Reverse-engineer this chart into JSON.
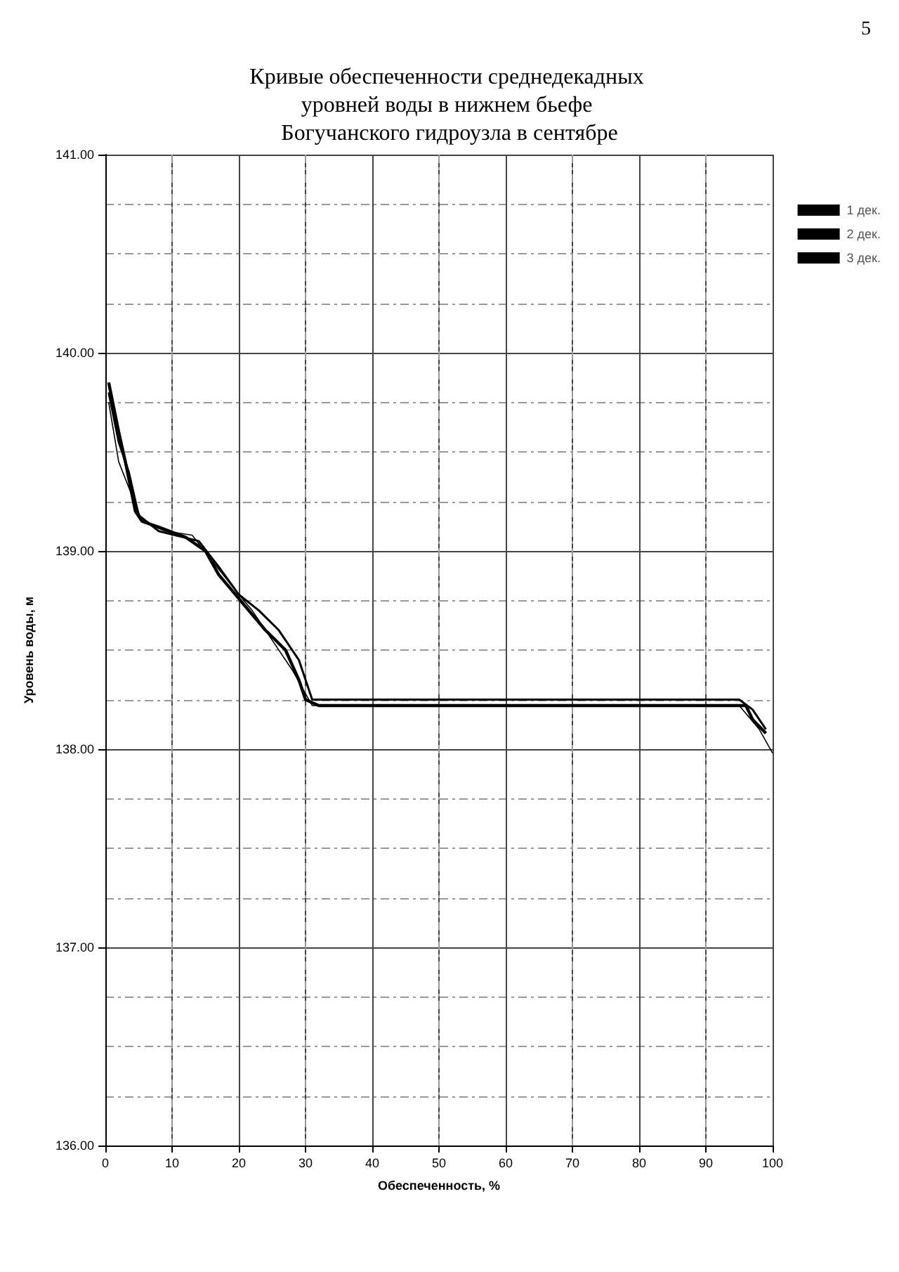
{
  "chart_data": {
    "type": "line",
    "title": "Кривые обеспеченности среднедекадных уровней воды в нижнем бьефе Богучанского гидроузла в сентябре",
    "xlabel": "Обеспеченность, %",
    "ylabel": "Уровень воды, м",
    "annotations": [
      "5"
    ],
    "xlim": [
      0,
      100
    ],
    "xticks": [
      0,
      10,
      20,
      30,
      40,
      50,
      60,
      70,
      80,
      90,
      100
    ],
    "ylim": [
      136,
      141
    ],
    "yticks": [
      {
        "value": 136,
        "label": "136.00"
      },
      {
        "value": 137,
        "label": "137.00"
      },
      {
        "value": 138,
        "label": "138.00"
      },
      {
        "value": 139,
        "label": "139.00"
      },
      {
        "value": 140,
        "label": "140.00"
      },
      {
        "value": 141,
        "label": "141.00"
      }
    ],
    "grid": true,
    "legend": "right",
    "marker": "none",
    "line_style": "solid",
    "series": [
      {
        "name": "1 дек.",
        "color": "#000000",
        "x": [
          0.5,
          2,
          3,
          4.5,
          5.5,
          8,
          12,
          15,
          17,
          19,
          21,
          24,
          27,
          29,
          30,
          32,
          96,
          97,
          99
        ],
        "values": [
          139.85,
          139.6,
          139.45,
          139.2,
          139.15,
          139.12,
          139.07,
          139.0,
          138.88,
          138.8,
          138.72,
          138.6,
          138.5,
          138.35,
          138.25,
          138.22,
          138.22,
          138.15,
          138.08
        ]
      },
      {
        "name": "2 дек.",
        "color": "#000000",
        "x": [
          0.5,
          2,
          3.5,
          5,
          8,
          14,
          17,
          20,
          23,
          26,
          29,
          31,
          95,
          97,
          99
        ],
        "values": [
          139.8,
          139.55,
          139.4,
          139.18,
          139.1,
          139.05,
          138.92,
          138.78,
          138.7,
          138.6,
          138.45,
          138.25,
          138.25,
          138.2,
          138.1
        ]
      },
      {
        "name": "3 дек.",
        "color": "#000000",
        "x": [
          0.5,
          2,
          5.5,
          9,
          13,
          16,
          20,
          22,
          25,
          28,
          31,
          95,
          98,
          100
        ],
        "values": [
          139.75,
          139.45,
          139.15,
          139.1,
          139.08,
          138.95,
          138.78,
          138.7,
          138.55,
          138.4,
          138.22,
          138.22,
          138.1,
          137.98
        ]
      }
    ]
  }
}
